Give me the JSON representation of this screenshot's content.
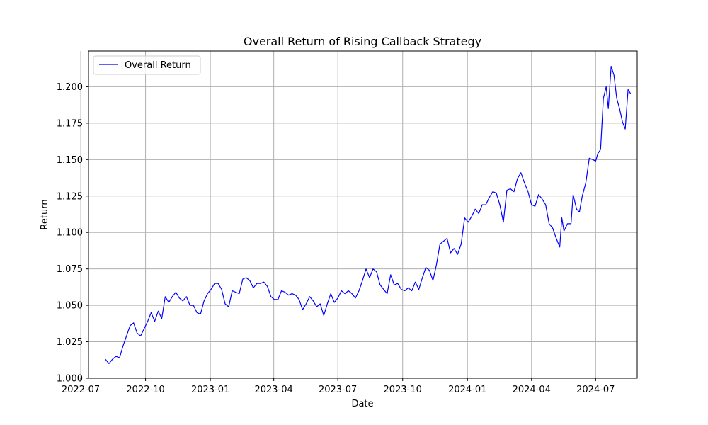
{
  "chart_data": {
    "type": "line",
    "title": "Overall Return of Rising Callback Strategy",
    "xlabel": "Date",
    "ylabel": "Return",
    "xlim": [
      "2022-07-12",
      "2024-08-29"
    ],
    "ylim": [
      1.0,
      1.2245
    ],
    "x_ticks": [
      "2022-07",
      "2022-10",
      "2023-01",
      "2023-04",
      "2023-07",
      "2023-10",
      "2024-01",
      "2024-04",
      "2024-07"
    ],
    "x_tick_dates": [
      "2022-07-01",
      "2022-10-01",
      "2023-01-01",
      "2023-04-01",
      "2023-07-01",
      "2023-10-01",
      "2024-01-01",
      "2024-04-01",
      "2024-07-01"
    ],
    "y_ticks": [
      "1.000",
      "1.025",
      "1.050",
      "1.075",
      "1.100",
      "1.125",
      "1.150",
      "1.175",
      "1.200"
    ],
    "y_tick_values": [
      1.0,
      1.025,
      1.05,
      1.075,
      1.1,
      1.125,
      1.15,
      1.175,
      1.2
    ],
    "grid": true,
    "legend_position": "top-left",
    "series": [
      {
        "name": "Overall Return",
        "color": "#0000ff",
        "points": [
          [
            "2022-08-05",
            1.013
          ],
          [
            "2022-08-10",
            1.01
          ],
          [
            "2022-08-15",
            1.013
          ],
          [
            "2022-08-20",
            1.015
          ],
          [
            "2022-08-25",
            1.014
          ],
          [
            "2022-08-30",
            1.022
          ],
          [
            "2022-09-04",
            1.029
          ],
          [
            "2022-09-09",
            1.036
          ],
          [
            "2022-09-14",
            1.038
          ],
          [
            "2022-09-19",
            1.031
          ],
          [
            "2022-09-24",
            1.029
          ],
          [
            "2022-09-29",
            1.034
          ],
          [
            "2022-10-04",
            1.039
          ],
          [
            "2022-10-09",
            1.045
          ],
          [
            "2022-10-14",
            1.039
          ],
          [
            "2022-10-19",
            1.046
          ],
          [
            "2022-10-24",
            1.041
          ],
          [
            "2022-10-29",
            1.056
          ],
          [
            "2022-11-03",
            1.052
          ],
          [
            "2022-11-08",
            1.056
          ],
          [
            "2022-11-13",
            1.059
          ],
          [
            "2022-11-18",
            1.055
          ],
          [
            "2022-11-23",
            1.053
          ],
          [
            "2022-11-28",
            1.056
          ],
          [
            "2022-12-03",
            1.05
          ],
          [
            "2022-12-08",
            1.05
          ],
          [
            "2022-12-13",
            1.045
          ],
          [
            "2022-12-18",
            1.044
          ],
          [
            "2022-12-23",
            1.053
          ],
          [
            "2022-12-28",
            1.058
          ],
          [
            "2023-01-02",
            1.061
          ],
          [
            "2023-01-07",
            1.065
          ],
          [
            "2023-01-12",
            1.065
          ],
          [
            "2023-01-17",
            1.061
          ],
          [
            "2023-01-22",
            1.051
          ],
          [
            "2023-01-27",
            1.049
          ],
          [
            "2023-02-01",
            1.06
          ],
          [
            "2023-02-06",
            1.059
          ],
          [
            "2023-02-11",
            1.058
          ],
          [
            "2023-02-16",
            1.068
          ],
          [
            "2023-02-21",
            1.069
          ],
          [
            "2023-02-26",
            1.067
          ],
          [
            "2023-03-03",
            1.062
          ],
          [
            "2023-03-08",
            1.065
          ],
          [
            "2023-03-13",
            1.065
          ],
          [
            "2023-03-18",
            1.066
          ],
          [
            "2023-03-23",
            1.063
          ],
          [
            "2023-03-28",
            1.056
          ],
          [
            "2023-04-02",
            1.054
          ],
          [
            "2023-04-07",
            1.054
          ],
          [
            "2023-04-12",
            1.06
          ],
          [
            "2023-04-17",
            1.059
          ],
          [
            "2023-04-22",
            1.057
          ],
          [
            "2023-04-27",
            1.058
          ],
          [
            "2023-05-02",
            1.057
          ],
          [
            "2023-05-07",
            1.054
          ],
          [
            "2023-05-12",
            1.047
          ],
          [
            "2023-05-17",
            1.051
          ],
          [
            "2023-05-22",
            1.056
          ],
          [
            "2023-05-27",
            1.053
          ],
          [
            "2023-06-01",
            1.049
          ],
          [
            "2023-06-06",
            1.051
          ],
          [
            "2023-06-11",
            1.043
          ],
          [
            "2023-06-16",
            1.051
          ],
          [
            "2023-06-21",
            1.058
          ],
          [
            "2023-06-26",
            1.052
          ],
          [
            "2023-07-01",
            1.055
          ],
          [
            "2023-07-06",
            1.06
          ],
          [
            "2023-07-11",
            1.058
          ],
          [
            "2023-07-16",
            1.06
          ],
          [
            "2023-07-21",
            1.058
          ],
          [
            "2023-07-26",
            1.055
          ],
          [
            "2023-07-31",
            1.06
          ],
          [
            "2023-08-05",
            1.067
          ],
          [
            "2023-08-10",
            1.075
          ],
          [
            "2023-08-15",
            1.069
          ],
          [
            "2023-08-20",
            1.075
          ],
          [
            "2023-08-25",
            1.073
          ],
          [
            "2023-08-30",
            1.064
          ],
          [
            "2023-09-04",
            1.061
          ],
          [
            "2023-09-09",
            1.058
          ],
          [
            "2023-09-14",
            1.071
          ],
          [
            "2023-09-19",
            1.064
          ],
          [
            "2023-09-24",
            1.065
          ],
          [
            "2023-09-29",
            1.061
          ],
          [
            "2023-10-04",
            1.06
          ],
          [
            "2023-10-09",
            1.062
          ],
          [
            "2023-10-14",
            1.06
          ],
          [
            "2023-10-19",
            1.066
          ],
          [
            "2023-10-24",
            1.061
          ],
          [
            "2023-10-29",
            1.069
          ],
          [
            "2023-11-03",
            1.076
          ],
          [
            "2023-11-08",
            1.074
          ],
          [
            "2023-11-13",
            1.067
          ],
          [
            "2023-11-18",
            1.078
          ],
          [
            "2023-11-23",
            1.092
          ],
          [
            "2023-11-28",
            1.094
          ],
          [
            "2023-12-03",
            1.096
          ],
          [
            "2023-12-08",
            1.086
          ],
          [
            "2023-12-13",
            1.089
          ],
          [
            "2023-12-18",
            1.085
          ],
          [
            "2023-12-23",
            1.092
          ],
          [
            "2023-12-28",
            1.11
          ],
          [
            "2024-01-02",
            1.107
          ],
          [
            "2024-01-07",
            1.111
          ],
          [
            "2024-01-12",
            1.116
          ],
          [
            "2024-01-17",
            1.113
          ],
          [
            "2024-01-22",
            1.119
          ],
          [
            "2024-01-27",
            1.119
          ],
          [
            "2024-02-01",
            1.124
          ],
          [
            "2024-02-06",
            1.128
          ],
          [
            "2024-02-11",
            1.127
          ],
          [
            "2024-02-16",
            1.119
          ],
          [
            "2024-02-21",
            1.107
          ],
          [
            "2024-02-26",
            1.129
          ],
          [
            "2024-03-02",
            1.13
          ],
          [
            "2024-03-07",
            1.128
          ],
          [
            "2024-03-12",
            1.137
          ],
          [
            "2024-03-17",
            1.141
          ],
          [
            "2024-03-22",
            1.134
          ],
          [
            "2024-03-27",
            1.128
          ],
          [
            "2024-04-01",
            1.119
          ],
          [
            "2024-04-06",
            1.118
          ],
          [
            "2024-04-11",
            1.126
          ],
          [
            "2024-04-16",
            1.123
          ],
          [
            "2024-04-21",
            1.119
          ],
          [
            "2024-04-26",
            1.106
          ],
          [
            "2024-05-01",
            1.103
          ],
          [
            "2024-05-06",
            1.096
          ],
          [
            "2024-05-11",
            1.09
          ],
          [
            "2024-05-14",
            1.11
          ],
          [
            "2024-05-17",
            1.101
          ],
          [
            "2024-05-22",
            1.106
          ],
          [
            "2024-05-27",
            1.106
          ],
          [
            "2024-05-30",
            1.126
          ],
          [
            "2024-06-04",
            1.116
          ],
          [
            "2024-06-08",
            1.114
          ],
          [
            "2024-06-12",
            1.125
          ],
          [
            "2024-06-17",
            1.134
          ],
          [
            "2024-06-22",
            1.151
          ],
          [
            "2024-06-27",
            1.15
          ],
          [
            "2024-07-01",
            1.149
          ],
          [
            "2024-07-04",
            1.154
          ],
          [
            "2024-07-08",
            1.157
          ],
          [
            "2024-07-12",
            1.192
          ],
          [
            "2024-07-16",
            1.2
          ],
          [
            "2024-07-19",
            1.185
          ],
          [
            "2024-07-23",
            1.214
          ],
          [
            "2024-07-27",
            1.208
          ],
          [
            "2024-07-31",
            1.192
          ],
          [
            "2024-08-04",
            1.185
          ],
          [
            "2024-08-08",
            1.176
          ],
          [
            "2024-08-12",
            1.171
          ],
          [
            "2024-08-16",
            1.198
          ],
          [
            "2024-08-20",
            1.195
          ]
        ]
      }
    ]
  }
}
